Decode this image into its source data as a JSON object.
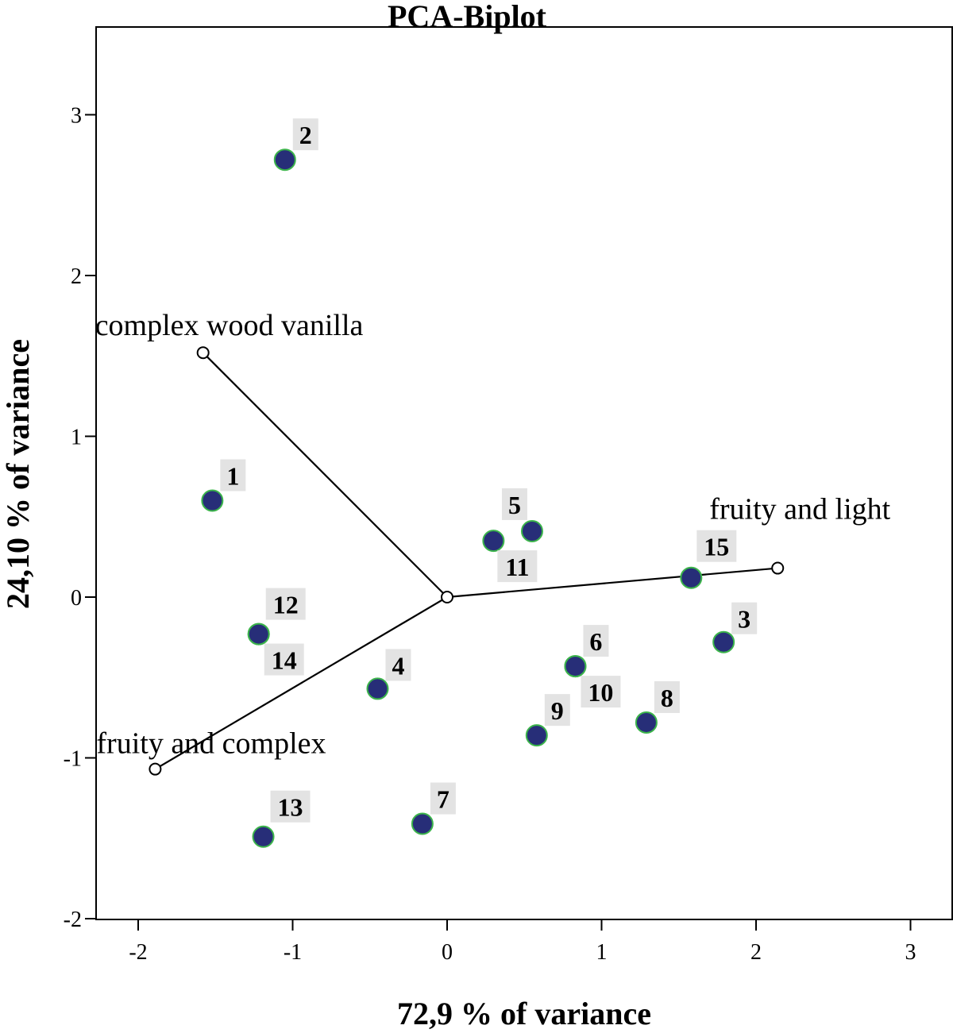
{
  "chart_data": {
    "type": "scatter",
    "title": "PCA-Biplot",
    "xlabel": "72,9 % of variance",
    "ylabel": "24,10 % of variance",
    "xlim": [
      -2.28,
      3.0
    ],
    "ylim": [
      -2.0,
      3.55
    ],
    "xticks": [
      "-2",
      "-1",
      "0",
      "1",
      "2",
      "3"
    ],
    "yticks": [
      "3",
      "2",
      "1",
      "0",
      "-1",
      "-2"
    ],
    "grid": false,
    "points": [
      {
        "label": "1",
        "x": -1.52,
        "y": 0.6
      },
      {
        "label": "2",
        "x": -1.05,
        "y": 2.72
      },
      {
        "label": "3",
        "x": 1.79,
        "y": -0.28
      },
      {
        "label": "4",
        "x": -0.45,
        "y": -0.57
      },
      {
        "label": "5",
        "x": 0.55,
        "y": 0.41
      },
      {
        "label": "6",
        "x": 0.83,
        "y": -0.43
      },
      {
        "label": "7",
        "x": -0.16,
        "y": -1.41
      },
      {
        "label": "8",
        "x": 1.29,
        "y": -0.78
      },
      {
        "label": "9",
        "x": 0.58,
        "y": -0.86
      },
      {
        "label": "10",
        "x": 0.83,
        "y": -0.43
      },
      {
        "label": "11",
        "x": 0.3,
        "y": 0.35
      },
      {
        "label": "12",
        "x": -1.22,
        "y": -0.23
      },
      {
        "label": "13",
        "x": -1.19,
        "y": -1.49
      },
      {
        "label": "14",
        "x": -1.22,
        "y": -0.23
      },
      {
        "label": "15",
        "x": 1.58,
        "y": 0.12
      }
    ],
    "vectors": [
      {
        "label": "complex wood vanilla",
        "x": -1.58,
        "y": 1.52
      },
      {
        "label": "fruity and light",
        "x": 2.14,
        "y": 0.18
      },
      {
        "label": "fruity and complex",
        "x": -1.89,
        "y": -1.07
      }
    ],
    "colors": {
      "point_fill": "#272e78",
      "point_stroke": "#3cb44b",
      "label_bg": "#e3e3e3",
      "axis": "#000000"
    }
  }
}
